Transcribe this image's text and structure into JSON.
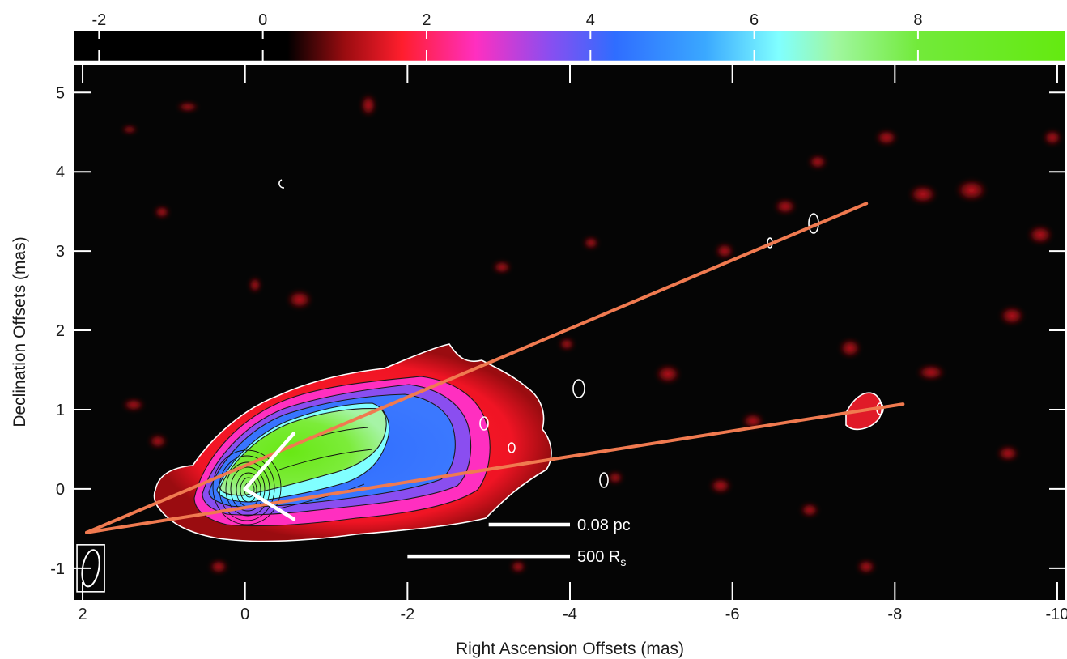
{
  "chart_data": {
    "type": "heatmap",
    "xlabel": "Right Ascension Offsets (mas)",
    "ylabel": "Declination Offsets (mas)",
    "xlim": [
      2.1,
      -10.1
    ],
    "ylim": [
      -1.4,
      5.35
    ],
    "x_ticks": [
      2,
      0,
      -2,
      -4,
      -6,
      -8,
      -10
    ],
    "y_ticks": [
      -1,
      0,
      1,
      2,
      3,
      4,
      5
    ],
    "colorbar": {
      "range": [
        -2.3,
        9.8
      ],
      "ticks": [
        -2,
        0,
        2,
        4,
        6,
        8
      ],
      "color_stops": [
        {
          "value": -2.3,
          "color": "#000000"
        },
        {
          "value": 0.3,
          "color": "#000000"
        },
        {
          "value": 1.0,
          "color": "#9a0c10"
        },
        {
          "value": 1.7,
          "color": "#ff1e2d"
        },
        {
          "value": 2.6,
          "color": "#ff2fc0"
        },
        {
          "value": 3.5,
          "color": "#8a4ef0"
        },
        {
          "value": 4.3,
          "color": "#2f6dff"
        },
        {
          "value": 5.4,
          "color": "#3aa8ff"
        },
        {
          "value": 6.3,
          "color": "#80ffff"
        },
        {
          "value": 7.0,
          "color": "#a0f7a0"
        },
        {
          "value": 8.0,
          "color": "#72ea3a"
        },
        {
          "value": 9.8,
          "color": "#64ea10"
        }
      ]
    },
    "guide_lines": [
      {
        "from": [
          1.95,
          -0.55
        ],
        "to": [
          -7.65,
          3.6
        ],
        "color": "#f07a50"
      },
      {
        "from": [
          1.95,
          -0.55
        ],
        "to": [
          -8.1,
          1.07
        ],
        "color": "#f07a50"
      }
    ],
    "position_angle_markers": {
      "color": "#ffffff",
      "vertex": [
        0.0,
        0.0
      ],
      "arm_ends": [
        [
          -0.6,
          0.7
        ],
        [
          -0.6,
          -0.38
        ]
      ]
    },
    "scale_bars": [
      {
        "label": "0.08 pc",
        "from_x": -3.0,
        "to_x": -4.0,
        "y": -0.45
      },
      {
        "label": "500 R",
        "subscript": "s",
        "from_x": -2.0,
        "to_x": -4.0,
        "y": -0.85
      }
    ],
    "beam": {
      "center": [
        1.9,
        -1.0
      ],
      "major_mas": 0.5,
      "minor_mas": 0.25
    }
  }
}
